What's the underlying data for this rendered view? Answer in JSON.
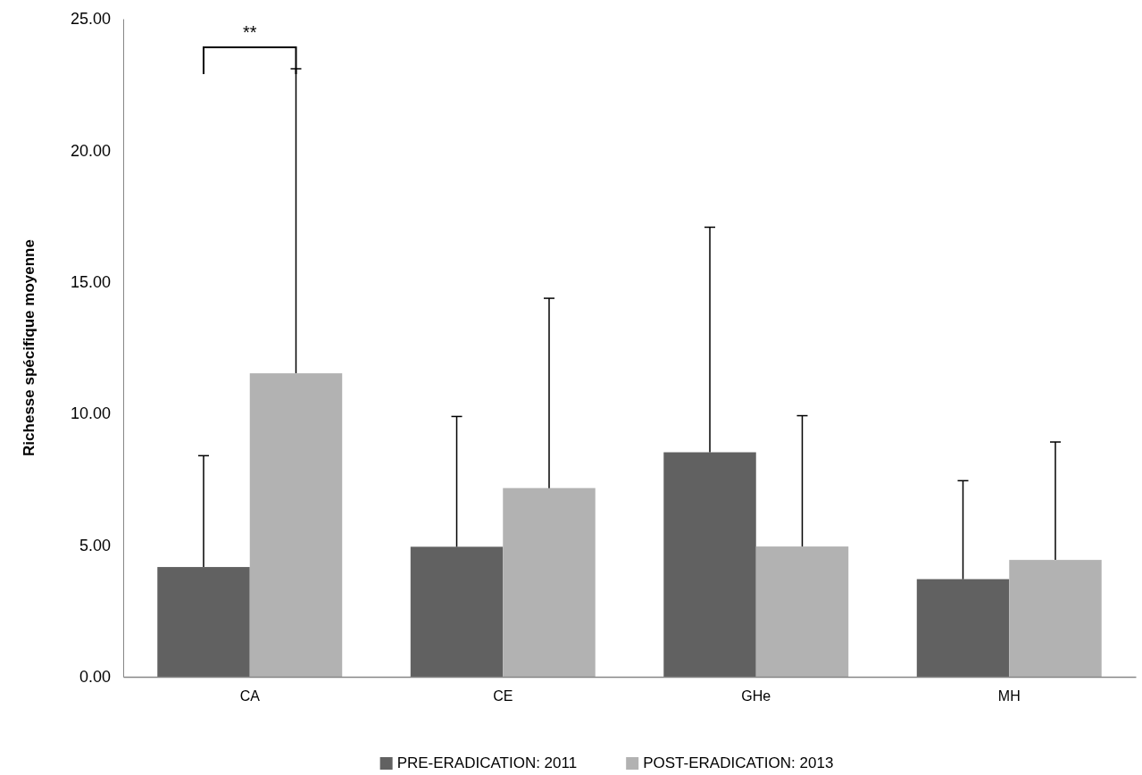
{
  "chart_data": {
    "type": "bar",
    "ylabel": "Richesse spécifique moyenne",
    "categories": [
      "CA",
      "CE",
      "GHe",
      "MH"
    ],
    "series": [
      {
        "name": "PRE-ERADICATION: 2011",
        "color": "#616161",
        "values": [
          4.17,
          4.94,
          8.53,
          3.71
        ],
        "errors": [
          [
            4.17,
            8.4
          ],
          [
            4.94,
            9.89
          ],
          [
            8.53,
            17.08
          ],
          [
            3.71,
            7.45
          ]
        ]
      },
      {
        "name": "POST-ERADICATION: 2013",
        "color": "#b2b2b2",
        "values": [
          11.53,
          7.17,
          4.95,
          4.44
        ],
        "errors": [
          [
            11.53,
            23.1
          ],
          [
            7.17,
            14.38
          ],
          [
            4.95,
            9.92
          ],
          [
            4.44,
            8.92
          ]
        ]
      }
    ],
    "ylim": [
      0,
      25
    ],
    "yticks": [
      {
        "value": 0,
        "label": "0.00"
      },
      {
        "value": 5,
        "label": "5.00"
      },
      {
        "value": 10,
        "label": "10.00"
      },
      {
        "value": 15,
        "label": "15.00"
      },
      {
        "value": 20,
        "label": "20.00"
      },
      {
        "value": 25,
        "label": "25.00"
      }
    ],
    "grid": false,
    "legend": "bottom",
    "annotations": [
      "**"
    ]
  }
}
